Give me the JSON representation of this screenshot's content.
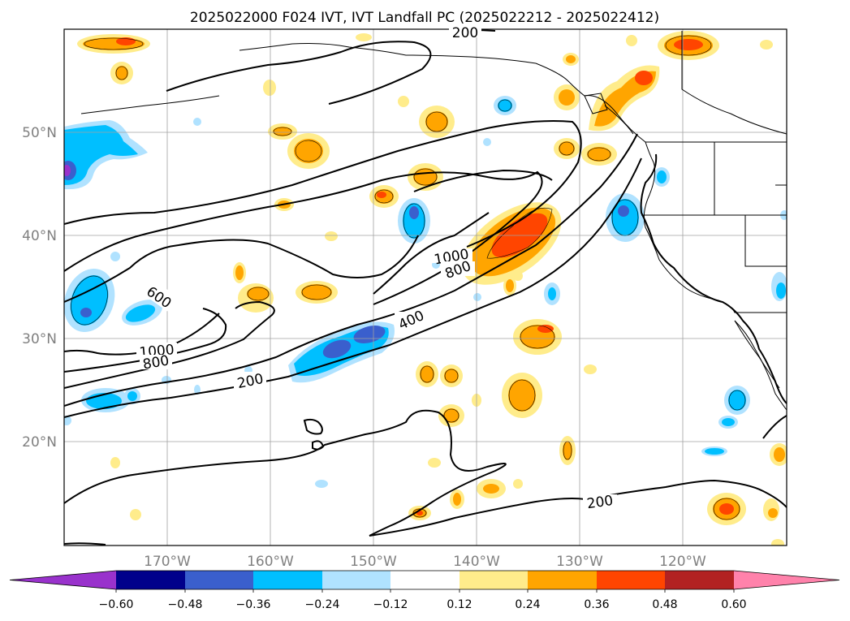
{
  "title": "2025022000 F024 IVT, IVT Landfall PC (2025022212 - 2025022412)",
  "map": {
    "lat_ticks": [
      "50°N",
      "40°N",
      "30°N",
      "20°N"
    ],
    "lon_ticks": [
      "170°W",
      "160°W",
      "150°W",
      "140°W",
      "130°W",
      "120°W"
    ],
    "grid": true,
    "projection": "PlateCarree",
    "lon_range": [
      -180,
      -110
    ],
    "lat_range": [
      10,
      60
    ]
  },
  "contours": {
    "variable": "IVT",
    "labels": [
      "200",
      "600",
      "1000",
      "800",
      "200",
      "400",
      "1000",
      "800",
      "200"
    ]
  },
  "colorbar": {
    "ticks": [
      "−0.60",
      "−0.48",
      "−0.36",
      "−0.24",
      "−0.12",
      "0.12",
      "0.24",
      "0.36",
      "0.48",
      "0.60"
    ],
    "colors": [
      "#9932cc",
      "#00008b",
      "#3a5fcd",
      "#00bfff",
      "#b0e2ff",
      "#ffffff",
      "#ffec8b",
      "#ffa500",
      "#ff4500",
      "#b22222",
      "#ff82ab"
    ],
    "extend": "both"
  }
}
